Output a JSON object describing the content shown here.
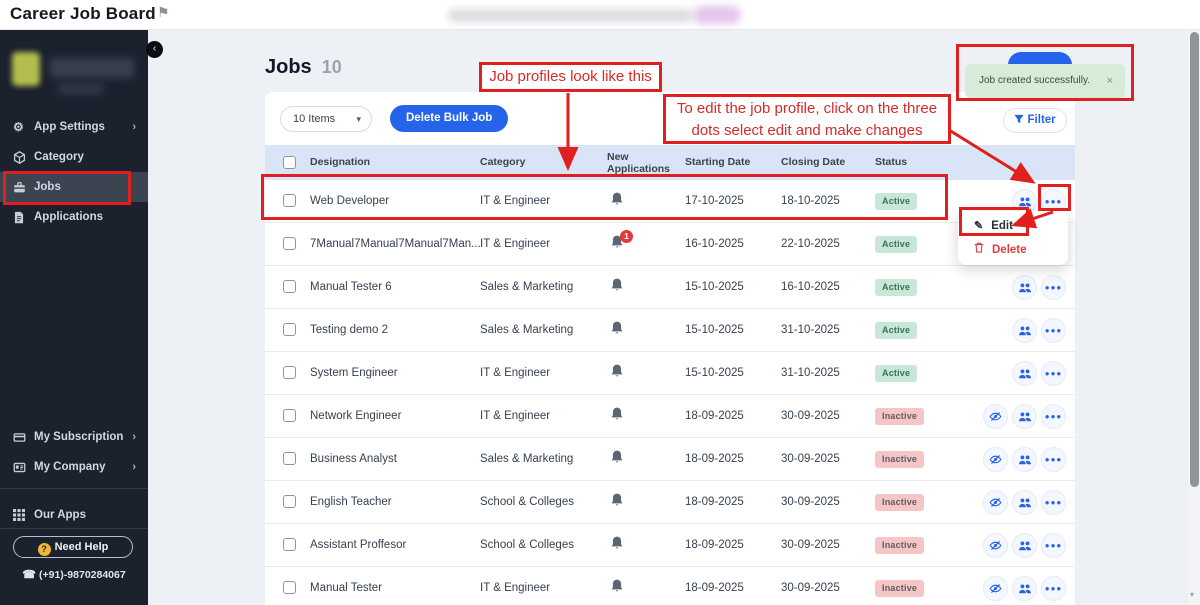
{
  "topbar": {
    "title": "Career Job Board",
    "flag_glyph": "⚑"
  },
  "sidebar": {
    "collapse_glyph": "‹",
    "chevron_glyph": "›",
    "items": [
      {
        "label": "App Settings",
        "chevron": true
      },
      {
        "label": "Category",
        "chevron": false
      },
      {
        "label": "Jobs",
        "chevron": false,
        "active": true
      },
      {
        "label": "Applications",
        "chevron": false
      }
    ],
    "items_lower": [
      {
        "label": "My Subscription",
        "chevron": true
      },
      {
        "label": "My Company",
        "chevron": true
      }
    ],
    "our_apps_label": "Our Apps",
    "need_help_label": "Need Help",
    "help_glyph": "?",
    "phone_glyph": "☎",
    "phone": "(+91)-9870284067"
  },
  "page": {
    "title": "Jobs",
    "count": "10"
  },
  "toolbar": {
    "items_select_value": "10 Items",
    "select_caret": "▾",
    "delete_bulk_label": "Delete Bulk Job",
    "filter_label": "Filter"
  },
  "toast": {
    "message": "Job created successfully.",
    "close_glyph": "×"
  },
  "table": {
    "headers": {
      "designation": "Designation",
      "category": "Category",
      "new_applications": "New Applications",
      "starting_date": "Starting Date",
      "closing_date": "Closing Date",
      "status": "Status"
    },
    "rows": [
      {
        "designation": "Web Developer",
        "category": "IT & Engineer",
        "new_badge": "",
        "starting": "17-10-2025",
        "closing": "18-10-2025",
        "status": "Active"
      },
      {
        "designation": "7Manual7Manual7Manual7Man...",
        "category": "IT & Engineer",
        "new_badge": "1",
        "starting": "16-10-2025",
        "closing": "22-10-2025",
        "status": "Active"
      },
      {
        "designation": "Manual Tester 6",
        "category": "Sales & Marketing",
        "new_badge": "",
        "starting": "15-10-2025",
        "closing": "16-10-2025",
        "status": "Active"
      },
      {
        "designation": "Testing demo 2",
        "category": "Sales & Marketing",
        "new_badge": "",
        "starting": "15-10-2025",
        "closing": "31-10-2025",
        "status": "Active"
      },
      {
        "designation": "System Engineer",
        "category": "IT & Engineer",
        "new_badge": "",
        "starting": "15-10-2025",
        "closing": "31-10-2025",
        "status": "Active"
      },
      {
        "designation": "Network Engineer",
        "category": "IT & Engineer",
        "new_badge": "",
        "starting": "18-09-2025",
        "closing": "30-09-2025",
        "status": "Inactive"
      },
      {
        "designation": "Business Analyst",
        "category": "Sales & Marketing",
        "new_badge": "",
        "starting": "18-09-2025",
        "closing": "30-09-2025",
        "status": "Inactive"
      },
      {
        "designation": "English Teacher",
        "category": "School & Colleges",
        "new_badge": "",
        "starting": "18-09-2025",
        "closing": "30-09-2025",
        "status": "Inactive"
      },
      {
        "designation": "Assistant Proffesor",
        "category": "School & Colleges",
        "new_badge": "",
        "starting": "18-09-2025",
        "closing": "30-09-2025",
        "status": "Inactive"
      },
      {
        "designation": "Manual Tester",
        "category": "IT & Engineer",
        "new_badge": "",
        "starting": "18-09-2025",
        "closing": "30-09-2025",
        "status": "Inactive"
      }
    ]
  },
  "menu": {
    "edit_label": "Edit",
    "edit_glyph": "✎",
    "delete_label": "Delete"
  },
  "annotations": {
    "profiles_note": "Job profiles look like this",
    "edit_note_line1": "To edit the job profile, click on the three",
    "edit_note_line2": "dots select edit and make changes"
  },
  "icons": {
    "dots_glyph": "●●●"
  },
  "colors": {
    "accent_blue": "#2563eb",
    "annotation_red": "#e01f1f",
    "active_badge_bg": "#c9e7d7",
    "active_badge_text": "#35725a",
    "inactive_badge_bg": "#f6c6c6",
    "toast_bg": "#d7ebd9",
    "sidebar_bg": "#1b212d",
    "header_row_bg": "#d9e5f7"
  }
}
